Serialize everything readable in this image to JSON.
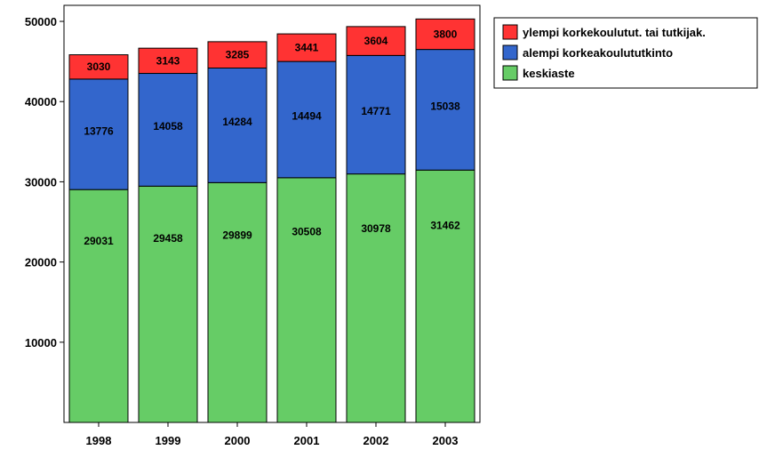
{
  "chart_data": {
    "type": "bar",
    "stacked": true,
    "title": "",
    "xlabel": "",
    "ylabel": "",
    "categories": [
      "1998",
      "1999",
      "2000",
      "2001",
      "2002",
      "2003"
    ],
    "series": [
      {
        "name": "keskiaste",
        "color": "#66cc66",
        "values": [
          29031,
          29458,
          29899,
          30508,
          30978,
          31462
        ]
      },
      {
        "name": "alempi korkeakoulututkinto",
        "color": "#3366cc",
        "values": [
          13776,
          14058,
          14284,
          14494,
          14771,
          15038
        ]
      },
      {
        "name": "ylempi korkekoulutut. tai tutkijak.",
        "color": "#ff3333",
        "values": [
          3030,
          3143,
          3285,
          3441,
          3604,
          3800
        ]
      }
    ],
    "ylim": [
      0,
      52000
    ],
    "yticks": [
      10000,
      20000,
      30000,
      40000,
      50000
    ],
    "grid": false,
    "legend_position": "top-right",
    "legend_order": [
      "ylempi korkekoulutut. tai tutkijak.",
      "alempi korkeakoulututkinto",
      "keskiaste"
    ]
  }
}
